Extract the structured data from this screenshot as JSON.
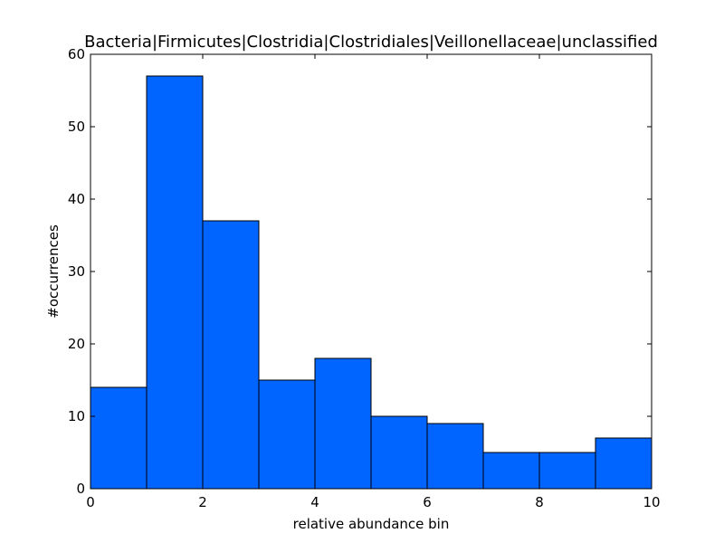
{
  "chart_data": {
    "type": "bar",
    "title": "Bacteria|Firmicutes|Clostridia|Clostridiales|Veillonellaceae|unclassified",
    "xlabel": "relative abundance bin",
    "ylabel": "#occurrences",
    "bins": [
      [
        0,
        1
      ],
      [
        1,
        2
      ],
      [
        2,
        3
      ],
      [
        3,
        4
      ],
      [
        4,
        5
      ],
      [
        5,
        6
      ],
      [
        6,
        7
      ],
      [
        7,
        8
      ],
      [
        8,
        9
      ],
      [
        9,
        10
      ]
    ],
    "values": [
      14,
      57,
      37,
      15,
      18,
      10,
      9,
      5,
      5,
      7
    ],
    "xlim": [
      0,
      10
    ],
    "ylim": [
      0,
      60
    ],
    "xticks": [
      0,
      2,
      4,
      6,
      8,
      10
    ],
    "yticks": [
      0,
      10,
      20,
      30,
      40,
      50,
      60
    ],
    "bar_color": "#0064ff",
    "grid": false,
    "legend": "none"
  }
}
